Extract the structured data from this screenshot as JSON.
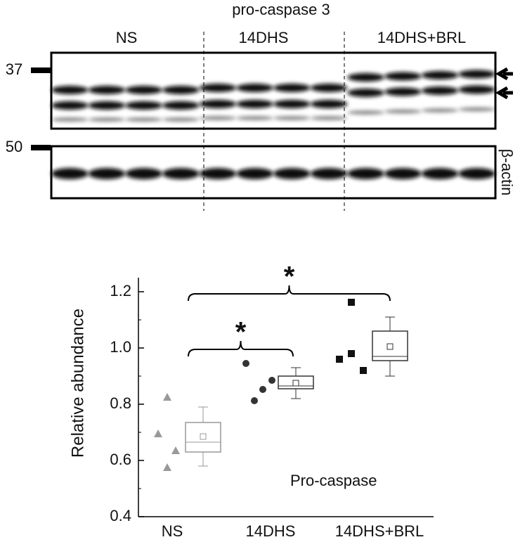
{
  "blot": {
    "title": "pro-caspase 3",
    "lanes": [
      "NS",
      "14DHS",
      "14DHS+BRL"
    ],
    "markers": [
      37,
      50
    ],
    "loading_label": "β-actin"
  },
  "chart_data": {
    "type": "box",
    "ylabel": "Relative abundance",
    "categories": [
      "NS",
      "14DHS",
      "14DHS+BRL"
    ],
    "colors": [
      "#999999",
      "#333333",
      "#111111"
    ],
    "markers": [
      "triangle",
      "circle",
      "square"
    ],
    "points": [
      [
        0.695,
        0.575,
        0.635,
        0.825
      ],
      [
        0.945,
        0.8125,
        0.8525,
        0.885
      ],
      [
        0.96,
        0.98,
        1.1625,
        0.92
      ]
    ],
    "boxes": [
      {
        "whisker_low": 0.58,
        "q1": 0.63,
        "median": 0.665,
        "q3": 0.735,
        "whisker_high": 0.79,
        "mean": 0.685
      },
      {
        "whisker_low": 0.82,
        "q1": 0.855,
        "median": 0.865,
        "q3": 0.9,
        "whisker_high": 0.93,
        "mean": 0.875
      },
      {
        "whisker_low": 0.9,
        "q1": 0.955,
        "median": 0.97,
        "q3": 1.06,
        "whisker_high": 1.11,
        "mean": 1.005
      }
    ],
    "ylim": [
      0.4,
      1.25
    ],
    "yticks": [
      0.4,
      0.6,
      0.8,
      {
        "value": 1,
        "label": "1.0"
      },
      1.2
    ],
    "significance": [
      {
        "from": 0,
        "to": 1,
        "label": "*"
      },
      {
        "from": 0,
        "to": 2,
        "label": "*"
      }
    ],
    "annotation": "Pro-caspase"
  }
}
